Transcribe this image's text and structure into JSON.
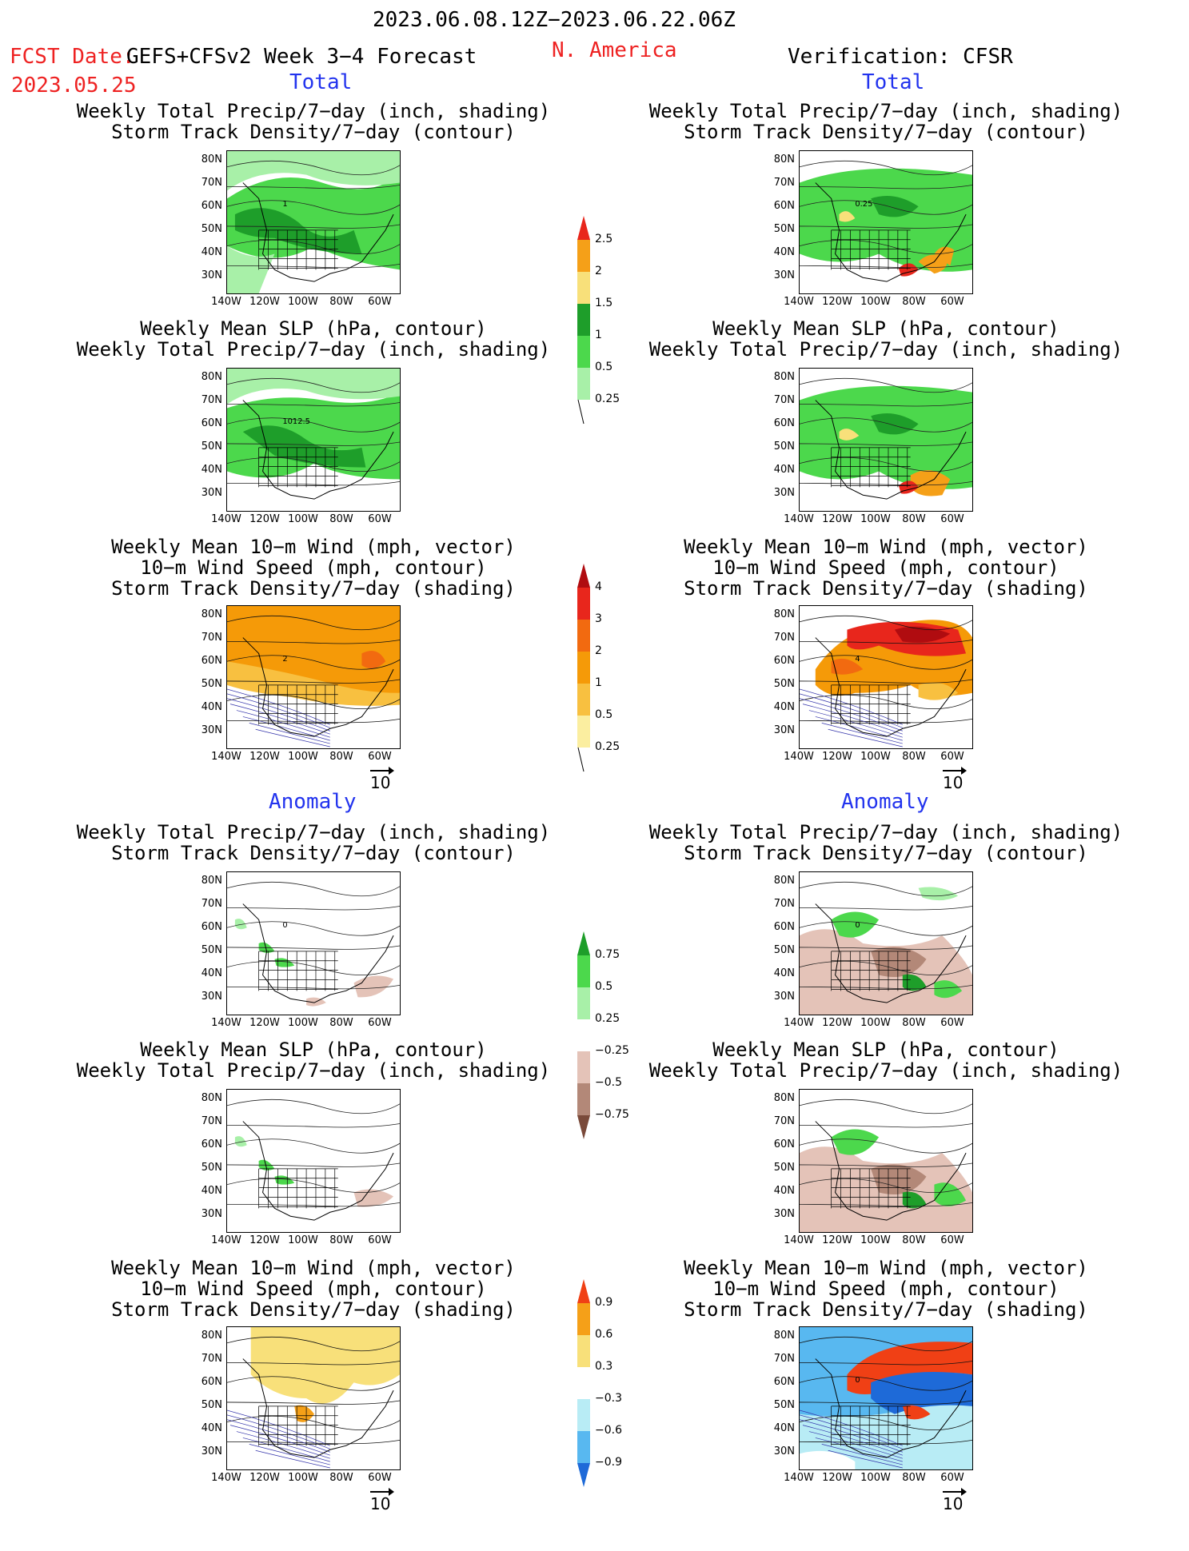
{
  "header": {
    "valid_period": "2023.06.08.12Z−2023.06.22.06Z",
    "fcst_label": "FCST Date:",
    "forecast_name": "GEFS+CFSv2 Week 3−4 Forecast",
    "fcst_date": "2023.05.25",
    "region": "N. America",
    "verification": "Verification: CFSR"
  },
  "sections": {
    "total": "Total",
    "anomaly": "Anomaly"
  },
  "panel_titles": {
    "precip_storm": [
      "Weekly Total Precip/7−day (inch, shading)",
      "Storm Track Density/7−day (contour)"
    ],
    "slp_precip": [
      "Weekly Mean SLP (hPa, contour)",
      "Weekly Total Precip/7−day (inch, shading)"
    ],
    "wind_storm": [
      "Weekly Mean 10−m Wind (mph, vector)",
      "10−m Wind Speed (mph, contour)",
      "Storm Track Density/7−day (shading)"
    ]
  },
  "axes": {
    "lat_labels": [
      "80N",
      "70N",
      "60N",
      "50N",
      "40N",
      "30N"
    ],
    "lon_labels": [
      "140W",
      "120W",
      "100W",
      "80W",
      "60W"
    ]
  },
  "vector_ref": "10",
  "contour_labels": {
    "storm_total_fcst": "1",
    "slp_total_fcst": "1012.5",
    "storm_total_verif": "0.25",
    "wind_total_fcst": "2",
    "wind_total_verif": "4",
    "storm_anom_fcst": "0",
    "storm_anom_verif": "0",
    "wind_anom_verif": "0"
  },
  "colorbars": {
    "precip_total": {
      "labels": [
        "2.5",
        "2",
        "1.5",
        "1",
        "0.5",
        "0.25"
      ],
      "colors": [
        "#e8261c",
        "#f5a018",
        "#f8e07a",
        "#1e9e2a",
        "#4cd84c",
        "#a8f0a8"
      ]
    },
    "storm_total": {
      "labels": [
        "4",
        "3",
        "2",
        "1",
        "0.5",
        "0.25"
      ],
      "colors": [
        "#b00c10",
        "#e8261c",
        "#f26a10",
        "#f59a08",
        "#f8c040",
        "#fbeea0"
      ]
    },
    "precip_anom": {
      "labels": [
        "0.75",
        "0.5",
        "0.25",
        "−0.25",
        "−0.5",
        "−0.75"
      ],
      "colors": [
        "#1e9e2a",
        "#4cd84c",
        "#a8f0a8",
        "#ffffff",
        "#e4c3b8",
        "#b38878",
        "#7a4a3a"
      ]
    },
    "storm_anom": {
      "labels": [
        "0.9",
        "0.6",
        "0.3",
        "−0.3",
        "−0.6",
        "−0.9"
      ],
      "colors": [
        "#f04015",
        "#f5a018",
        "#f8e07a",
        "#ffffff",
        "#b8ecf5",
        "#58b8f0",
        "#1e6ad8"
      ]
    }
  }
}
